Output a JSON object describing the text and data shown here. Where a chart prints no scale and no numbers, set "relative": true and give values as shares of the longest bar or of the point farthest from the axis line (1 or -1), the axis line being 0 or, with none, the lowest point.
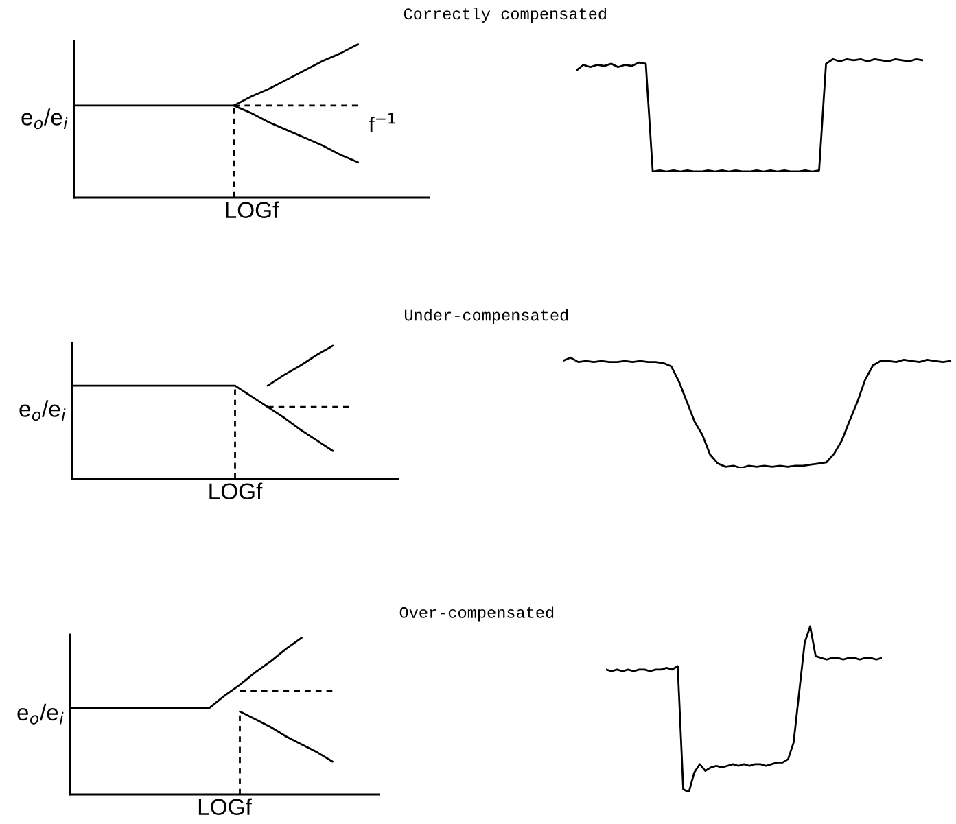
{
  "chart_data": [
    {
      "type": "line",
      "relative": true,
      "tick_labels": false,
      "xlabel": "LOGf",
      "ylabel": "e$_{o}$/e$_{i}$",
      "annotations": [
        "f$^{−1}$"
      ],
      "categories": [
        null,
        null,
        null,
        null,
        null,
        null,
        null,
        null,
        null,
        null,
        null,
        null,
        null,
        null,
        null,
        null,
        null,
        null,
        null,
        null,
        null
      ],
      "series": [
        {
          "color": "#000000",
          "line_style": "solid",
          "values": [
            null,
            null,
            null,
            null,
            null,
            null,
            null,
            null,
            null,
            0.6,
            0.66,
            0.71,
            0.77,
            0.83,
            0.89,
            0.94,
            1.0,
            null,
            null,
            null,
            null
          ]
        },
        {
          "color": "#000000",
          "line_style": "solid",
          "values": [
            0.6,
            0.6,
            0.6,
            0.6,
            0.6,
            0.6,
            0.6,
            0.6,
            0.6,
            0.6,
            0.55,
            0.49,
            0.44,
            0.39,
            0.34,
            0.28,
            0.23,
            null,
            null,
            null,
            null
          ]
        },
        {
          "color": "#000000",
          "line_style": "dashed",
          "values": [
            null,
            null,
            null,
            null,
            null,
            null,
            null,
            null,
            null,
            0.6,
            0.6,
            0.6,
            0.6,
            0.6,
            0.6,
            0.6,
            0.6,
            null,
            null,
            null,
            null
          ]
        }
      ]
    },
    {
      "type": "line",
      "relative": true,
      "tick_labels": false,
      "title": "Correctly compensated",
      "categories": [
        null,
        null,
        null,
        null,
        null,
        null,
        null,
        null,
        null,
        null,
        null,
        null,
        null,
        null,
        null,
        null,
        null,
        null,
        null,
        null,
        null,
        null,
        null,
        null,
        null,
        null,
        null,
        null,
        null,
        null,
        null,
        null,
        null,
        null,
        null,
        null,
        null,
        null,
        null,
        null,
        null,
        null,
        null,
        null,
        null,
        null,
        null,
        null,
        null,
        null,
        null
      ],
      "series": [
        {
          "color": "#000000",
          "line_style": "solid",
          "values": [
            0.9,
            0.95,
            0.93,
            0.95,
            0.94,
            0.96,
            0.93,
            0.95,
            0.94,
            0.97,
            0.96,
            0.0,
            0.01,
            0.0,
            0.01,
            0.0,
            0.01,
            0.0,
            0.0,
            0.01,
            0.0,
            0.01,
            0.0,
            0.01,
            0.0,
            0.0,
            0.01,
            0.0,
            0.01,
            0.0,
            0.01,
            0.0,
            0.0,
            0.01,
            0.0,
            0.01,
            0.96,
            1.0,
            0.98,
            1.0,
            0.99,
            1.0,
            0.98,
            1.0,
            0.99,
            0.98,
            1.0,
            0.99,
            0.98,
            1.0,
            0.99
          ]
        }
      ]
    },
    {
      "type": "line",
      "relative": true,
      "tick_labels": false,
      "xlabel": "LOGf",
      "ylabel": "e$_{o}$/e$_{i}$",
      "categories": [
        null,
        null,
        null,
        null,
        null,
        null,
        null,
        null,
        null,
        null,
        null,
        null,
        null,
        null,
        null,
        null,
        null,
        null,
        null,
        null,
        null
      ],
      "series": [
        {
          "color": "#000000",
          "line_style": "solid",
          "values": [
            0.7,
            0.7,
            0.7,
            0.7,
            0.7,
            0.7,
            0.7,
            0.7,
            0.7,
            0.7,
            0.7,
            0.62,
            0.54,
            0.46,
            0.37,
            0.29,
            0.21,
            null,
            null,
            null,
            null
          ]
        },
        {
          "color": "#000000",
          "line_style": "dashed",
          "values": [
            null,
            null,
            null,
            null,
            null,
            null,
            null,
            null,
            null,
            null,
            null,
            null,
            0.54,
            0.54,
            0.54,
            0.54,
            0.54,
            0.54,
            null,
            null,
            null
          ]
        },
        {
          "color": "#000000",
          "line_style": "solid",
          "values": [
            null,
            null,
            null,
            null,
            null,
            null,
            null,
            null,
            null,
            null,
            null,
            null,
            0.7,
            0.78,
            0.85,
            0.93,
            1.0,
            null,
            null,
            null,
            null
          ]
        }
      ]
    },
    {
      "type": "line",
      "relative": true,
      "tick_labels": false,
      "title": "Under-compensated",
      "categories": [
        null,
        null,
        null,
        null,
        null,
        null,
        null,
        null,
        null,
        null,
        null,
        null,
        null,
        null,
        null,
        null,
        null,
        null,
        null,
        null,
        null,
        null,
        null,
        null,
        null,
        null,
        null,
        null,
        null,
        null,
        null,
        null,
        null,
        null,
        null,
        null,
        null,
        null,
        null,
        null,
        null,
        null,
        null,
        null,
        null,
        null,
        null,
        null,
        null,
        null,
        null
      ],
      "series": [
        {
          "color": "#000000",
          "line_style": "solid",
          "values": [
            0.97,
            1.0,
            0.96,
            0.97,
            0.96,
            0.97,
            0.96,
            0.96,
            0.97,
            0.96,
            0.97,
            0.96,
            0.96,
            0.95,
            0.92,
            0.78,
            0.6,
            0.42,
            0.3,
            0.12,
            0.04,
            0.01,
            0.02,
            0.0,
            0.02,
            0.01,
            0.02,
            0.01,
            0.02,
            0.01,
            0.02,
            0.02,
            0.03,
            0.04,
            0.05,
            0.13,
            0.25,
            0.43,
            0.6,
            0.8,
            0.93,
            0.97,
            0.97,
            0.96,
            0.98,
            0.97,
            0.96,
            0.98,
            0.97,
            0.96,
            0.97
          ]
        }
      ]
    },
    {
      "type": "line",
      "relative": true,
      "tick_labels": false,
      "xlabel": "LOGf",
      "ylabel": "e$_{o}$/e$_{i}$",
      "categories": [
        null,
        null,
        null,
        null,
        null,
        null,
        null,
        null,
        null,
        null,
        null,
        null,
        null,
        null,
        null,
        null,
        null,
        null,
        null,
        null,
        null
      ],
      "series": [
        {
          "color": "#000000",
          "line_style": "solid",
          "values": [
            0.55,
            0.55,
            0.55,
            0.55,
            0.55,
            0.55,
            0.55,
            0.55,
            0.55,
            0.55,
            0.63,
            0.7,
            0.78,
            0.85,
            0.93,
            1.0,
            null,
            null,
            null,
            null,
            null
          ]
        },
        {
          "color": "#000000",
          "line_style": "dashed",
          "values": [
            null,
            null,
            null,
            null,
            null,
            null,
            null,
            null,
            null,
            null,
            null,
            0.66,
            0.66,
            0.66,
            0.66,
            0.66,
            0.66,
            0.66,
            null,
            null,
            null
          ]
        },
        {
          "color": "#000000",
          "line_style": "solid",
          "values": [
            null,
            null,
            null,
            null,
            null,
            null,
            null,
            null,
            null,
            null,
            null,
            0.53,
            0.48,
            0.43,
            0.37,
            0.32,
            0.27,
            0.21,
            null,
            null,
            null
          ]
        }
      ]
    },
    {
      "type": "line",
      "relative": true,
      "tick_labels": false,
      "title": "Over-compensated",
      "categories": [
        null,
        null,
        null,
        null,
        null,
        null,
        null,
        null,
        null,
        null,
        null,
        null,
        null,
        null,
        null,
        null,
        null,
        null,
        null,
        null,
        null,
        null,
        null,
        null,
        null,
        null,
        null,
        null,
        null,
        null,
        null,
        null,
        null,
        null,
        null,
        null,
        null,
        null,
        null,
        null,
        null,
        null,
        null,
        null,
        null,
        null,
        null,
        null,
        null,
        null,
        null
      ],
      "series": [
        {
          "color": "#000000",
          "line_style": "solid",
          "values": [
            0.74,
            0.73,
            0.74,
            0.73,
            0.74,
            0.73,
            0.74,
            0.74,
            0.73,
            0.74,
            0.74,
            0.75,
            0.74,
            0.76,
            0.02,
            0.0,
            0.12,
            0.17,
            0.13,
            0.15,
            0.16,
            0.15,
            0.16,
            0.17,
            0.16,
            0.17,
            0.16,
            0.17,
            0.17,
            0.16,
            0.17,
            0.18,
            0.18,
            0.2,
            0.3,
            0.6,
            0.9,
            1.0,
            0.82,
            0.81,
            0.8,
            0.81,
            0.81,
            0.8,
            0.81,
            0.81,
            0.8,
            0.81,
            0.81,
            0.8,
            0.81
          ]
        }
      ]
    }
  ]
}
